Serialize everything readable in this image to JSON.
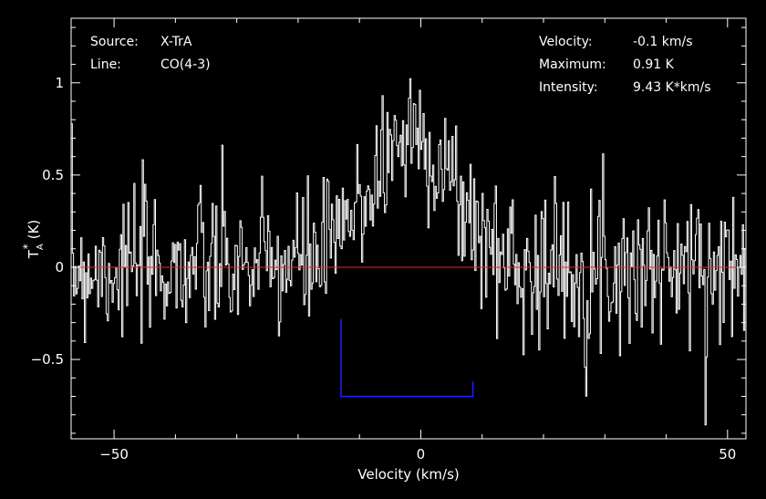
{
  "colors": {
    "background": "#000000",
    "foreground": "#ffffff",
    "baseline": "#ff2020",
    "window": "#2020ff"
  },
  "info": {
    "source_label": "Source:",
    "source_value": "X-TrA",
    "line_label": "Line:",
    "line_value": "CO(4-3)",
    "velocity_label": "Velocity:",
    "velocity_value": "-0.1 km/s",
    "maximum_label": "Maximum:",
    "maximum_value": "0.91 K",
    "intensity_label": "Intensity:",
    "intensity_value": "9.43 K*km/s"
  },
  "chart_data": {
    "type": "line",
    "title": "",
    "xlabel": "Velocity (km/s)",
    "ylabel_main": "T",
    "ylabel_sup": "*",
    "ylabel_sub": "A",
    "ylabel_unit": "(K)",
    "xlim": [
      -57,
      53
    ],
    "ylim": [
      -0.93,
      1.35
    ],
    "xticks": [
      {
        "value": -50,
        "label": "−50"
      },
      {
        "value": 0,
        "label": "0"
      },
      {
        "value": 50,
        "label": "50"
      }
    ],
    "yticks": [
      {
        "value": -0.5,
        "label": "−0.5"
      },
      {
        "value": 0,
        "label": "0"
      },
      {
        "value": 0.5,
        "label": "0.5"
      },
      {
        "value": 1,
        "label": "1"
      }
    ],
    "baseline": 0,
    "integration_window": {
      "v_min": -13,
      "v_max": 8.5,
      "y_bottom": -0.7,
      "y_left_top": -0.28,
      "y_right_top": -0.62
    },
    "line_profile": {
      "center": -1.5,
      "fwhm": 16,
      "peak": 0.72,
      "noise_rms": 0.2,
      "channels": 560,
      "seed": 7
    }
  }
}
